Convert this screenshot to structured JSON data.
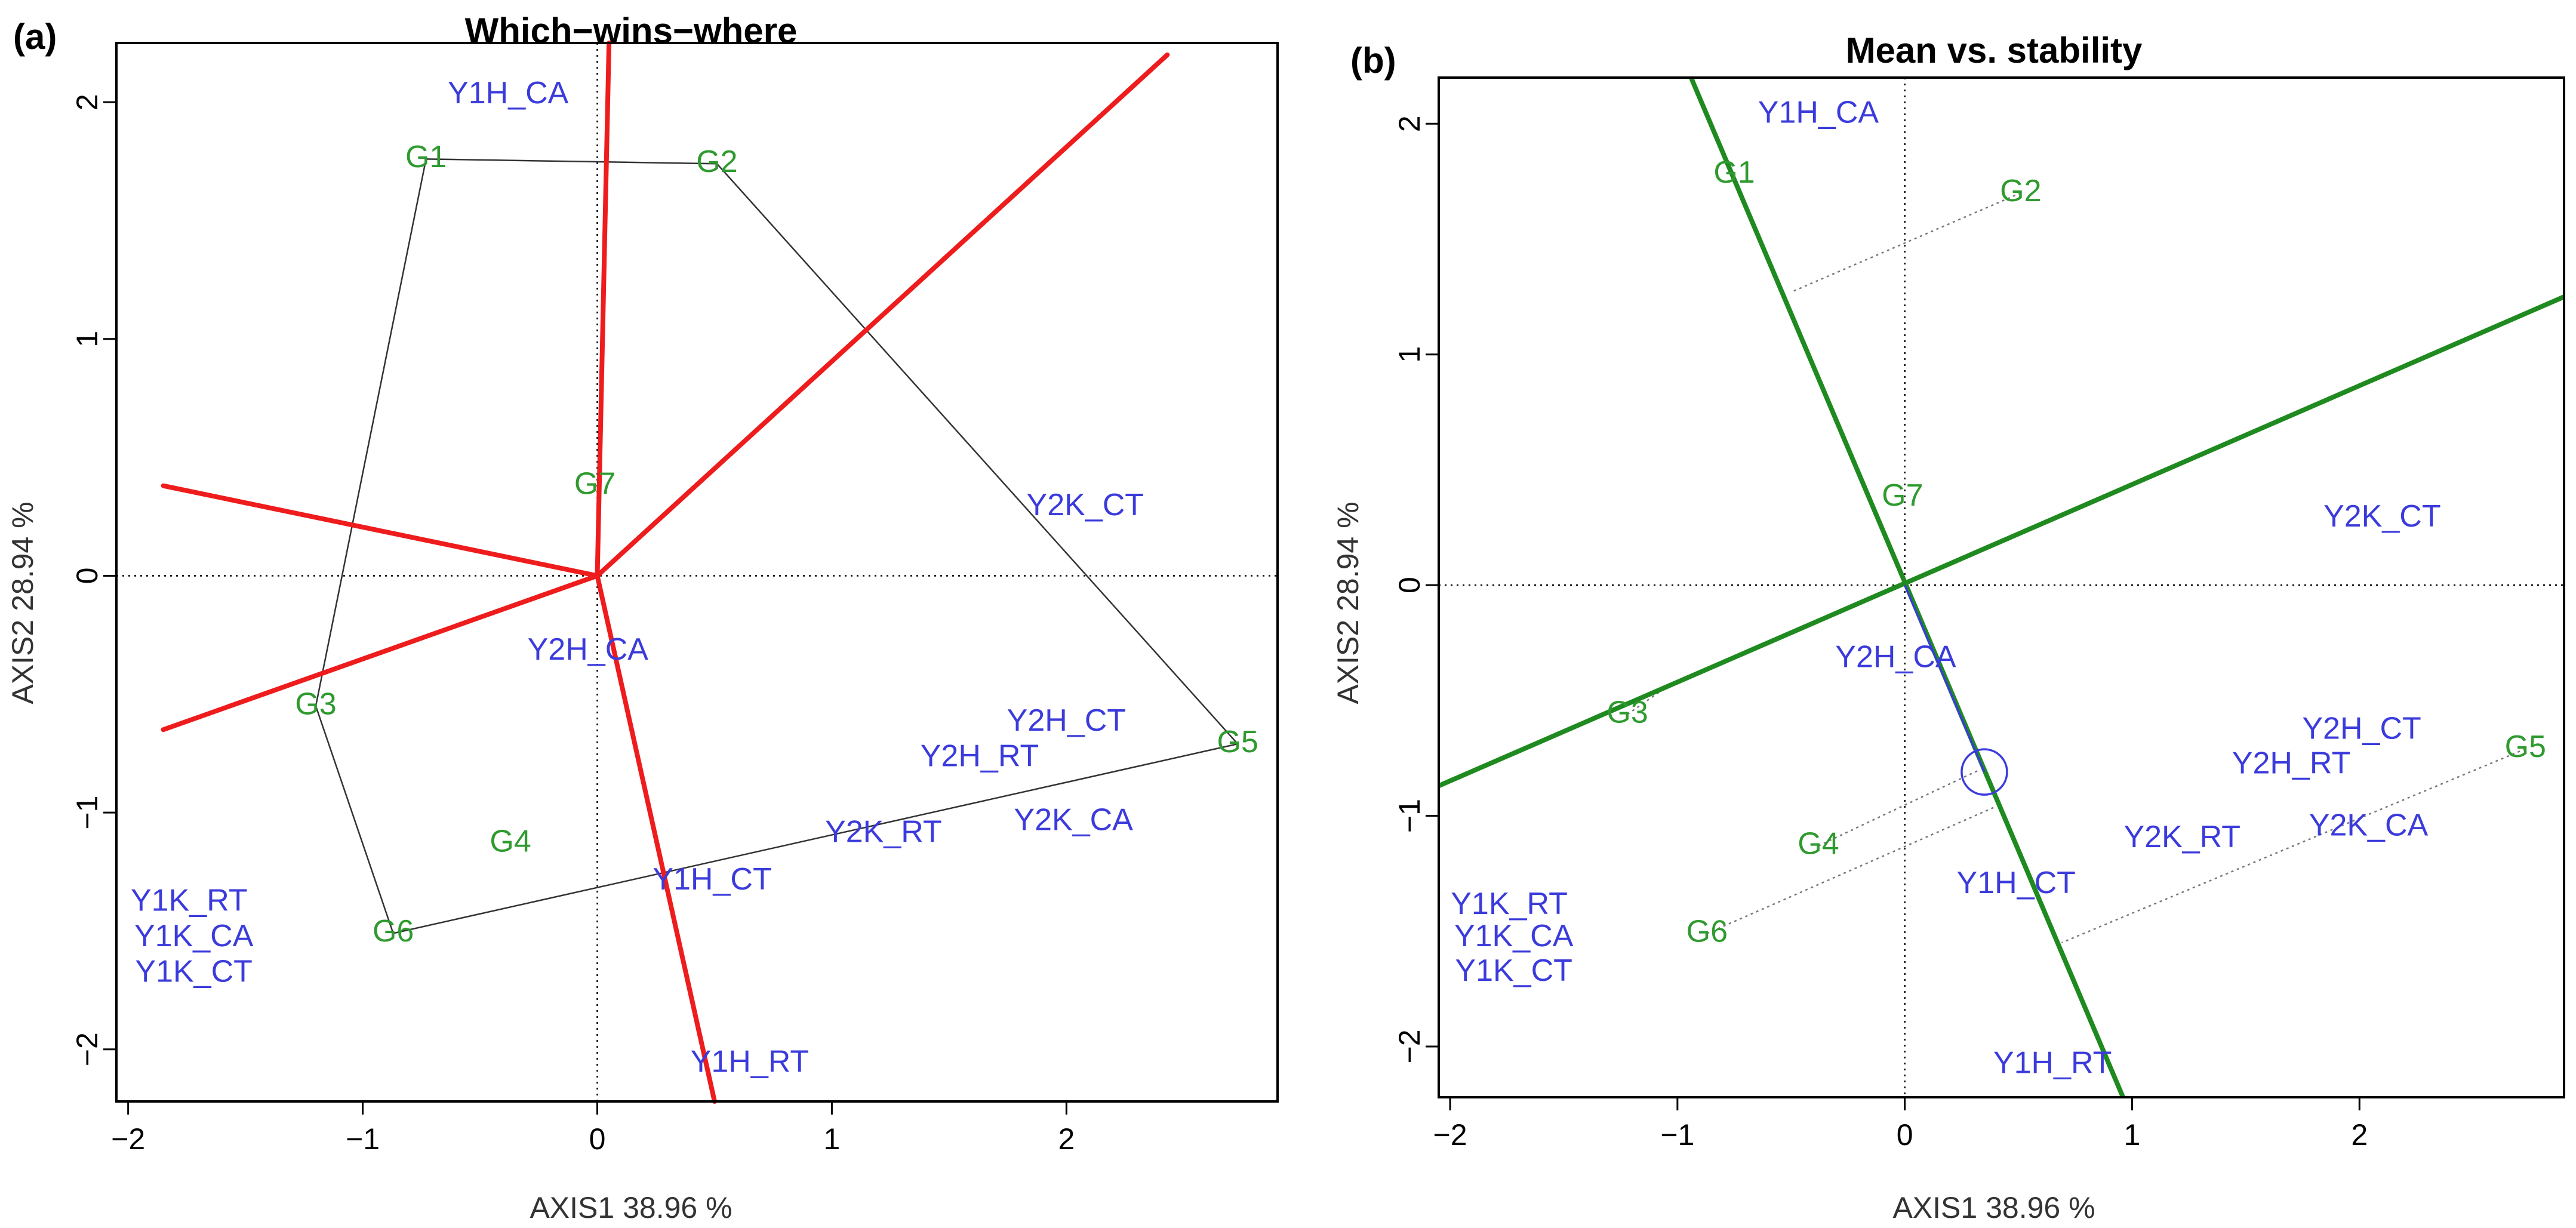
{
  "chart_data": [
    {
      "type": "scatter",
      "panel_label": "(a)",
      "title": "Which−wins−where",
      "xlabel": "AXIS1 38.96 %",
      "ylabel": "AXIS2 28.94 %",
      "xlim": [
        -2.05,
        2.9
      ],
      "ylim": [
        -2.22,
        2.25
      ],
      "xticks": [
        {
          "value": -2,
          "label": "−2"
        },
        {
          "value": -1,
          "label": "−1"
        },
        {
          "value": 0,
          "label": "0"
        },
        {
          "value": 1,
          "label": "1"
        },
        {
          "value": 2,
          "label": "2"
        }
      ],
      "yticks": [
        {
          "value": -2,
          "label": "−2"
        },
        {
          "value": -1,
          "label": "−1"
        },
        {
          "value": 0,
          "label": "0"
        },
        {
          "value": 1,
          "label": "1"
        },
        {
          "value": 2,
          "label": "2"
        }
      ],
      "genotypes": [
        {
          "name": "G1",
          "x": -0.73,
          "y": 1.76
        },
        {
          "name": "G2",
          "x": 0.51,
          "y": 1.74
        },
        {
          "name": "G3",
          "x": -1.2,
          "y": -0.55
        },
        {
          "name": "G4",
          "x": -0.37,
          "y": -1.13
        },
        {
          "name": "G5",
          "x": 2.73,
          "y": -0.71
        },
        {
          "name": "G6",
          "x": -0.87,
          "y": -1.51
        },
        {
          "name": "G7",
          "x": -0.01,
          "y": 0.38
        }
      ],
      "environments": [
        {
          "name": "Y1H_CA",
          "x": -0.38,
          "y": 2.03
        },
        {
          "name": "Y2K_CT",
          "x": 2.08,
          "y": 0.29
        },
        {
          "name": "Y2H_CA",
          "x": -0.04,
          "y": -0.32
        },
        {
          "name": "Y2H_CT",
          "x": 2.0,
          "y": -0.62
        },
        {
          "name": "Y2H_RT",
          "x": 1.63,
          "y": -0.77
        },
        {
          "name": "Y2K_RT",
          "x": 1.22,
          "y": -1.09
        },
        {
          "name": "Y2K_CA",
          "x": 2.03,
          "y": -1.04
        },
        {
          "name": "Y1H_CT",
          "x": 0.49,
          "y": -1.29
        },
        {
          "name": "Y1K_RT",
          "x": -1.74,
          "y": -1.38
        },
        {
          "name": "Y1K_CA",
          "x": -1.72,
          "y": -1.53
        },
        {
          "name": "Y1K_CT",
          "x": -1.72,
          "y": -1.68
        },
        {
          "name": "Y1H_RT",
          "x": 0.65,
          "y": -2.06
        }
      ],
      "hull": [
        "G1",
        "G2",
        "G5",
        "G6",
        "G3"
      ],
      "sector_lines": [
        {
          "x": 0.05,
          "y": 2.25
        },
        {
          "x": 2.43,
          "y": 2.2
        },
        {
          "x": -1.85,
          "y": 0.38
        },
        {
          "x": -1.85,
          "y": -0.65
        },
        {
          "x": 0.5,
          "y": -2.22
        }
      ]
    },
    {
      "type": "scatter",
      "panel_label": "(b)",
      "title": "Mean vs. stability",
      "xlabel": "AXIS1 38.96 %",
      "ylabel": "AXIS2 28.94 %",
      "xlim": [
        -2.05,
        2.9
      ],
      "ylim": [
        -2.22,
        2.2
      ],
      "xticks": [
        {
          "value": -2,
          "label": "−2"
        },
        {
          "value": -1,
          "label": "−1"
        },
        {
          "value": 0,
          "label": "0"
        },
        {
          "value": 1,
          "label": "1"
        },
        {
          "value": 2,
          "label": "2"
        }
      ],
      "yticks": [
        {
          "value": -2,
          "label": "−2"
        },
        {
          "value": -1,
          "label": "−1"
        },
        {
          "value": 0,
          "label": "0"
        },
        {
          "value": 1,
          "label": "1"
        },
        {
          "value": 2,
          "label": "2"
        }
      ],
      "genotypes": [
        {
          "name": "G1",
          "x": -0.75,
          "y": 1.78
        },
        {
          "name": "G2",
          "x": 0.51,
          "y": 1.7
        },
        {
          "name": "G3",
          "x": -1.22,
          "y": -0.56
        },
        {
          "name": "G4",
          "x": -0.38,
          "y": -1.13
        },
        {
          "name": "G5",
          "x": 2.73,
          "y": -0.71
        },
        {
          "name": "G6",
          "x": -0.87,
          "y": -1.51
        },
        {
          "name": "G7",
          "x": -0.01,
          "y": 0.38
        }
      ],
      "environments": [
        {
          "name": "Y1H_CA",
          "x": -0.38,
          "y": 2.04
        },
        {
          "name": "Y2K_CT",
          "x": 2.1,
          "y": 0.29
        },
        {
          "name": "Y2H_CA",
          "x": -0.04,
          "y": -0.32
        },
        {
          "name": "Y2H_CT",
          "x": 2.01,
          "y": -0.63
        },
        {
          "name": "Y2H_RT",
          "x": 1.7,
          "y": -0.78
        },
        {
          "name": "Y2K_RT",
          "x": 1.22,
          "y": -1.1
        },
        {
          "name": "Y2K_CA",
          "x": 2.04,
          "y": -1.05
        },
        {
          "name": "Y1H_CT",
          "x": 0.49,
          "y": -1.3
        },
        {
          "name": "Y1K_RT",
          "x": -1.74,
          "y": -1.39
        },
        {
          "name": "Y1K_CA",
          "x": -1.72,
          "y": -1.53
        },
        {
          "name": "Y1K_CT",
          "x": -1.72,
          "y": -1.68
        },
        {
          "name": "Y1H_RT",
          "x": 0.65,
          "y": -2.08
        }
      ],
      "aec_point": {
        "x": 0.35,
        "y": -0.81
      },
      "aec_abscissa": [
        {
          "x": -2.05,
          "y": -0.87
        },
        {
          "x": 2.9,
          "y": 1.25
        }
      ],
      "aec_ordinate": [
        {
          "x": -0.94,
          "y": 2.2
        },
        {
          "x": 0.96,
          "y": -2.22
        }
      ],
      "projections": [
        {
          "from": "G2",
          "to": {
            "x": -0.5,
            "y": 1.27
          }
        },
        {
          "from": "G3",
          "to": {
            "x": -1.06,
            "y": -0.45
          }
        },
        {
          "from": "G4",
          "to": {
            "x": 0.33,
            "y": -0.8
          }
        },
        {
          "from": "G6",
          "to": {
            "x": 0.4,
            "y": -0.96
          }
        },
        {
          "from": "G5",
          "to": {
            "x": 0.69,
            "y": -1.55
          }
        }
      ]
    }
  ]
}
